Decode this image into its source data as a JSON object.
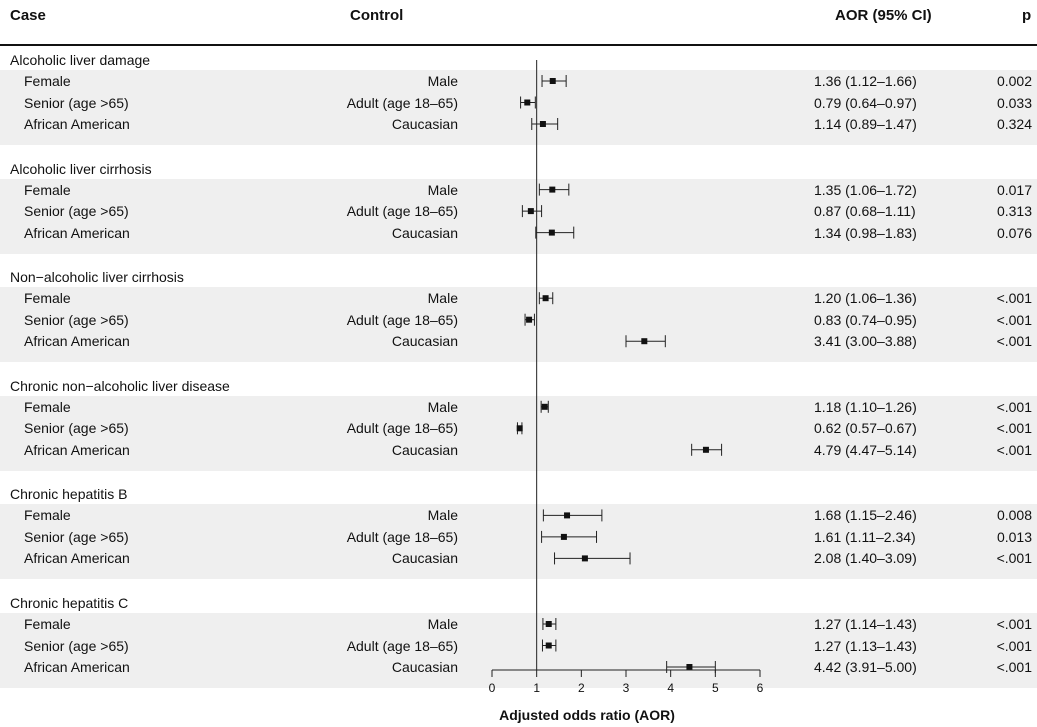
{
  "header": {
    "case": "Case",
    "control": "Control",
    "aor": "AOR (95% CI)",
    "p": "p"
  },
  "chart_data": {
    "type": "forest",
    "xlabel": "Adjusted odds ratio (AOR)",
    "xlim": [
      0,
      6
    ],
    "xticks": [
      0,
      1,
      2,
      3,
      4,
      5,
      6
    ],
    "reference_line": 1,
    "groups": [
      {
        "title": "Alcoholic liver damage",
        "rows": [
          {
            "case": "Female",
            "control": "Male",
            "aor": 1.36,
            "lo": 1.12,
            "hi": 1.66,
            "aor_text": "1.36 (1.12–1.66)",
            "p": "0.002"
          },
          {
            "case": "Senior (age >65)",
            "control": "Adult (age 18–65)",
            "aor": 0.79,
            "lo": 0.64,
            "hi": 0.97,
            "aor_text": "0.79 (0.64–0.97)",
            "p": "0.033"
          },
          {
            "case": "African American",
            "control": "Caucasian",
            "aor": 1.14,
            "lo": 0.89,
            "hi": 1.47,
            "aor_text": "1.14 (0.89–1.47)",
            "p": "0.324"
          }
        ]
      },
      {
        "title": "Alcoholic liver cirrhosis",
        "rows": [
          {
            "case": "Female",
            "control": "Male",
            "aor": 1.35,
            "lo": 1.06,
            "hi": 1.72,
            "aor_text": "1.35 (1.06–1.72)",
            "p": "0.017"
          },
          {
            "case": "Senior (age >65)",
            "control": "Adult (age 18–65)",
            "aor": 0.87,
            "lo": 0.68,
            "hi": 1.11,
            "aor_text": "0.87 (0.68–1.11)",
            "p": "0.313"
          },
          {
            "case": "African American",
            "control": "Caucasian",
            "aor": 1.34,
            "lo": 0.98,
            "hi": 1.83,
            "aor_text": "1.34 (0.98–1.83)",
            "p": "0.076"
          }
        ]
      },
      {
        "title": "Non−alcoholic liver cirrhosis",
        "rows": [
          {
            "case": "Female",
            "control": "Male",
            "aor": 1.2,
            "lo": 1.06,
            "hi": 1.36,
            "aor_text": "1.20 (1.06–1.36)",
            "p": "<.001"
          },
          {
            "case": "Senior (age >65)",
            "control": "Adult (age 18–65)",
            "aor": 0.83,
            "lo": 0.74,
            "hi": 0.95,
            "aor_text": "0.83 (0.74–0.95)",
            "p": "<.001"
          },
          {
            "case": "African American",
            "control": "Caucasian",
            "aor": 3.41,
            "lo": 3.0,
            "hi": 3.88,
            "aor_text": "3.41 (3.00–3.88)",
            "p": "<.001"
          }
        ]
      },
      {
        "title": "Chronic non−alcoholic liver disease",
        "rows": [
          {
            "case": "Female",
            "control": "Male",
            "aor": 1.18,
            "lo": 1.1,
            "hi": 1.26,
            "aor_text": "1.18 (1.10–1.26)",
            "p": "<.001"
          },
          {
            "case": "Senior (age >65)",
            "control": "Adult (age 18–65)",
            "aor": 0.62,
            "lo": 0.57,
            "hi": 0.67,
            "aor_text": "0.62 (0.57–0.67)",
            "p": "<.001"
          },
          {
            "case": "African American",
            "control": "Caucasian",
            "aor": 4.79,
            "lo": 4.47,
            "hi": 5.14,
            "aor_text": "4.79 (4.47–5.14)",
            "p": "<.001"
          }
        ]
      },
      {
        "title": "Chronic hepatitis B",
        "rows": [
          {
            "case": "Female",
            "control": "Male",
            "aor": 1.68,
            "lo": 1.15,
            "hi": 2.46,
            "aor_text": "1.68 (1.15–2.46)",
            "p": "0.008"
          },
          {
            "case": "Senior (age >65)",
            "control": "Adult (age 18–65)",
            "aor": 1.61,
            "lo": 1.11,
            "hi": 2.34,
            "aor_text": "1.61 (1.11–2.34)",
            "p": "0.013"
          },
          {
            "case": "African American",
            "control": "Caucasian",
            "aor": 2.08,
            "lo": 1.4,
            "hi": 3.09,
            "aor_text": "2.08 (1.40–3.09)",
            "p": "<.001"
          }
        ]
      },
      {
        "title": "Chronic hepatitis C",
        "rows": [
          {
            "case": "Female",
            "control": "Male",
            "aor": 1.27,
            "lo": 1.14,
            "hi": 1.43,
            "aor_text": "1.27 (1.14–1.43)",
            "p": "<.001"
          },
          {
            "case": "Senior (age >65)",
            "control": "Adult (age 18–65)",
            "aor": 1.27,
            "lo": 1.13,
            "hi": 1.43,
            "aor_text": "1.27 (1.13–1.43)",
            "p": "<.001"
          },
          {
            "case": "African American",
            "control": "Caucasian",
            "aor": 4.42,
            "lo": 3.91,
            "hi": 5.0,
            "aor_text": "4.42 (3.91–5.00)",
            "p": "<.001"
          }
        ]
      }
    ]
  }
}
